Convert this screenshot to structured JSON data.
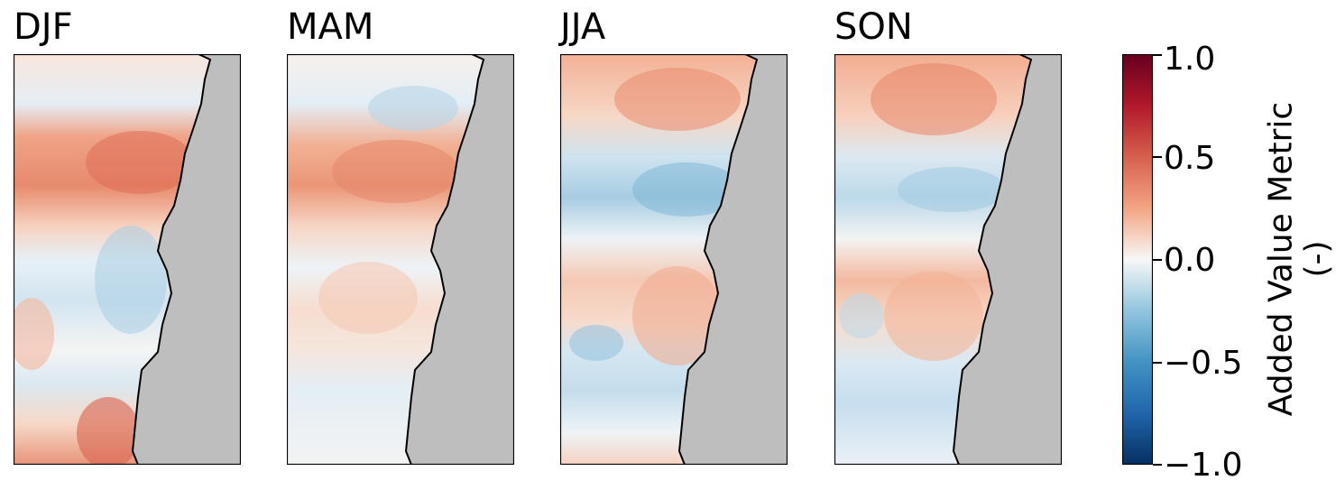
{
  "panels": [
    {
      "title": "DJF"
    },
    {
      "title": "MAM"
    },
    {
      "title": "JJA"
    },
    {
      "title": "SON"
    }
  ],
  "colorbar": {
    "label_line1": "Added Value Metric",
    "label_line2": "(-)",
    "ticks": [
      "1.0",
      "0.5",
      "0.0",
      "−0.5",
      "−1.0"
    ],
    "range": [
      -1.0,
      1.0
    ],
    "colormap": "RdBu_r"
  },
  "colors": {
    "land": "#bebebe",
    "strong_positive": "#67001f",
    "positive": "#d6604d",
    "neutral": "#f7f7f7",
    "negative": "#4393c3",
    "strong_negative": "#053061"
  }
}
